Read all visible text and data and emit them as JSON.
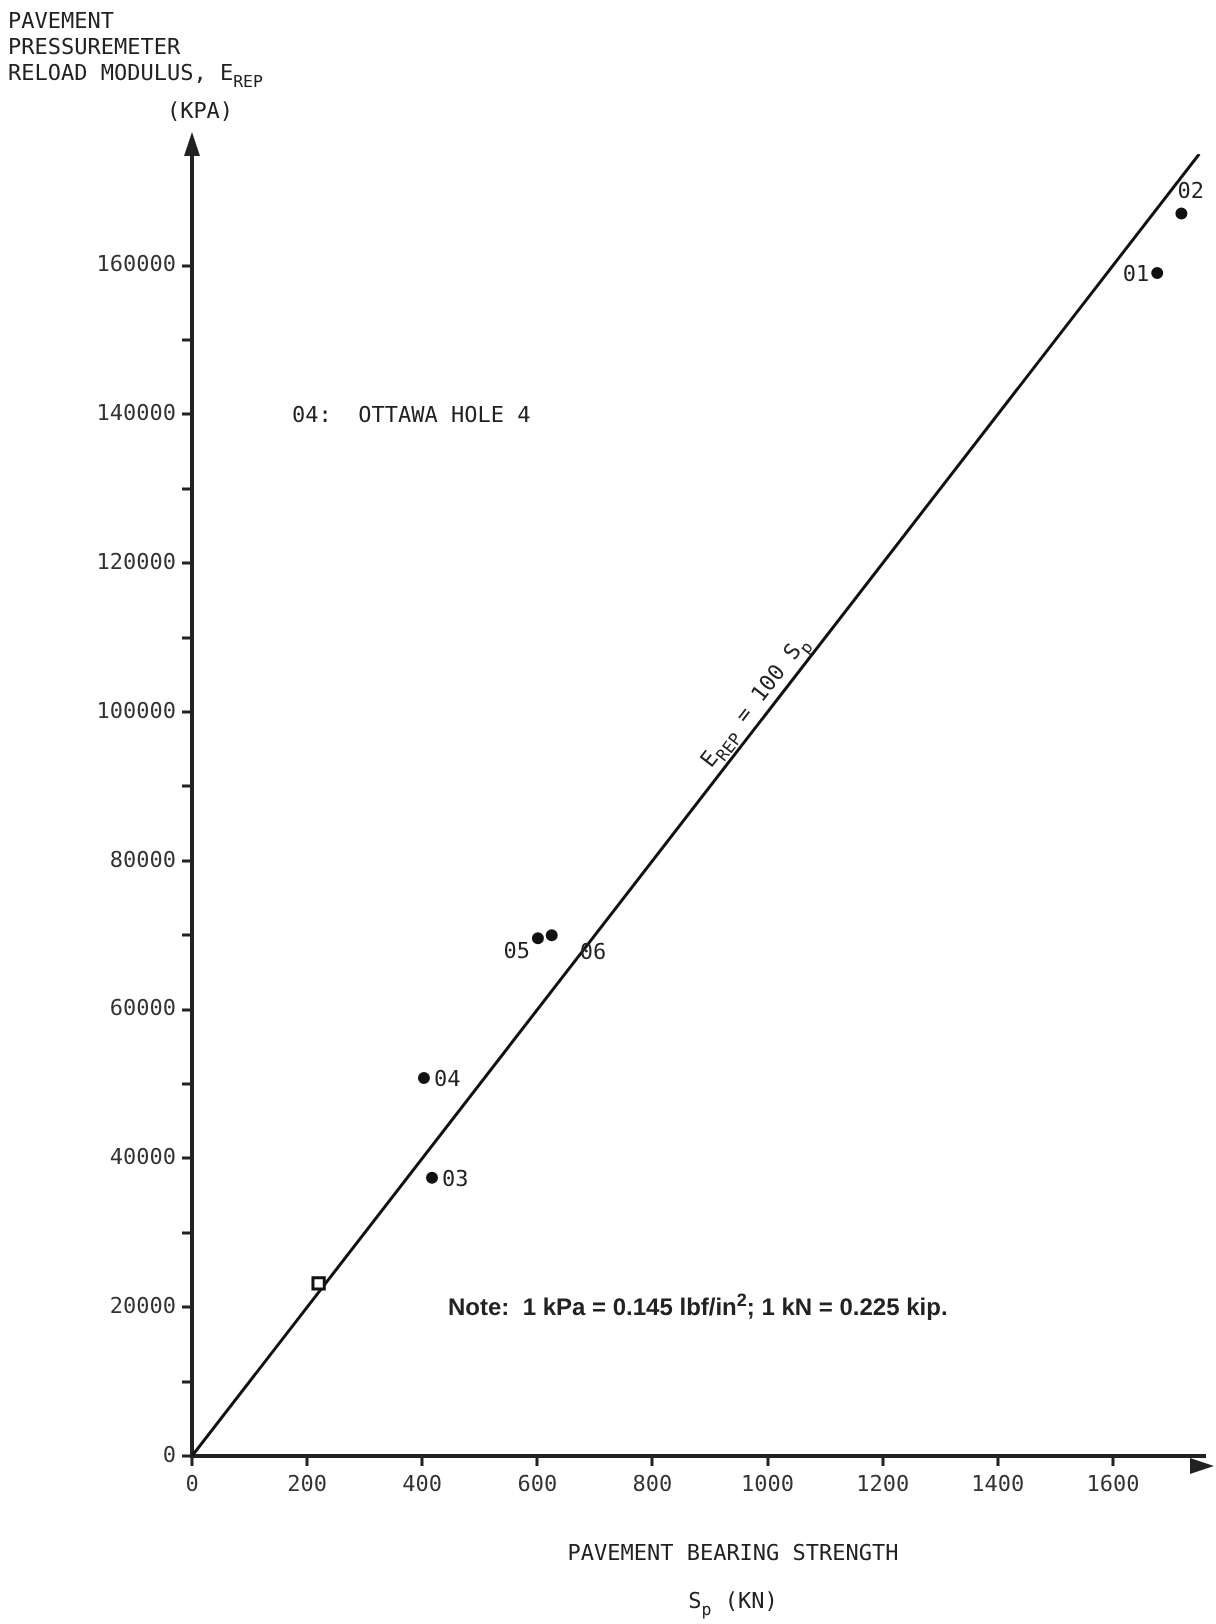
{
  "chart_data": {
    "type": "scatter",
    "xlabel": "PAVEMENT BEARING STRENGTH\nS$_{p}$ (KN)",
    "ylabel": "PAVEMENT\nPRESSUREMETER\nRELOAD MODULUS, E$_{REP}$\n(KPA)",
    "xlim": [
      0,
      1760
    ],
    "ylim": [
      0,
      175000
    ],
    "xticks": [
      0,
      200,
      400,
      600,
      800,
      1000,
      1200,
      1400,
      1600
    ],
    "yticks": [
      0,
      {
        "value": 10000,
        "label": null
      },
      20000,
      {
        "value": 30000,
        "label": null
      },
      40000,
      {
        "value": 50000,
        "label": null
      },
      60000,
      {
        "value": 70000,
        "label": null
      },
      80000,
      {
        "value": 90000,
        "label": null
      },
      100000,
      {
        "value": 110000,
        "label": null
      },
      120000,
      {
        "value": 130000,
        "label": null
      },
      140000,
      {
        "value": 150000,
        "label": null
      },
      160000
    ],
    "grid": false,
    "legend": false,
    "series": [
      {
        "color": "#111111",
        "marker": "circle",
        "x": [
          1677,
          1719,
          417,
          403,
          601,
          625
        ],
        "values": [
          159000,
          167000,
          37400,
          50800,
          69600,
          70000
        ]
      },
      {
        "color": "#111111",
        "marker": "square",
        "x": [
          220
        ],
        "values": [
          23200
        ]
      },
      {
        "type": "line",
        "color": "#111111",
        "marker": "none",
        "line_style": "solid",
        "x": [
          0,
          1750
        ],
        "values": [
          0,
          175000
        ]
      }
    ],
    "annotations": [
      {
        "text": "01",
        "x": 1677,
        "y": 159000
      },
      {
        "text": "02",
        "x": 1719,
        "y": 167000
      },
      {
        "text": "03",
        "x": 417,
        "y": 37400
      },
      {
        "text": "04",
        "x": 403,
        "y": 50800
      },
      {
        "text": "05",
        "x": 601,
        "y": 69600
      },
      {
        "text": "06",
        "x": 625,
        "y": 70000
      },
      {
        "text": "E$_{REP}$ = 100 S$_{p}$",
        "x": 1000,
        "y": 100000
      },
      "04:  OTTAWA HOLE 4",
      "Note:  1 kPa = 0.145 lbf/in$^{2}$; 1 kN = 0.225 kip."
    ]
  }
}
